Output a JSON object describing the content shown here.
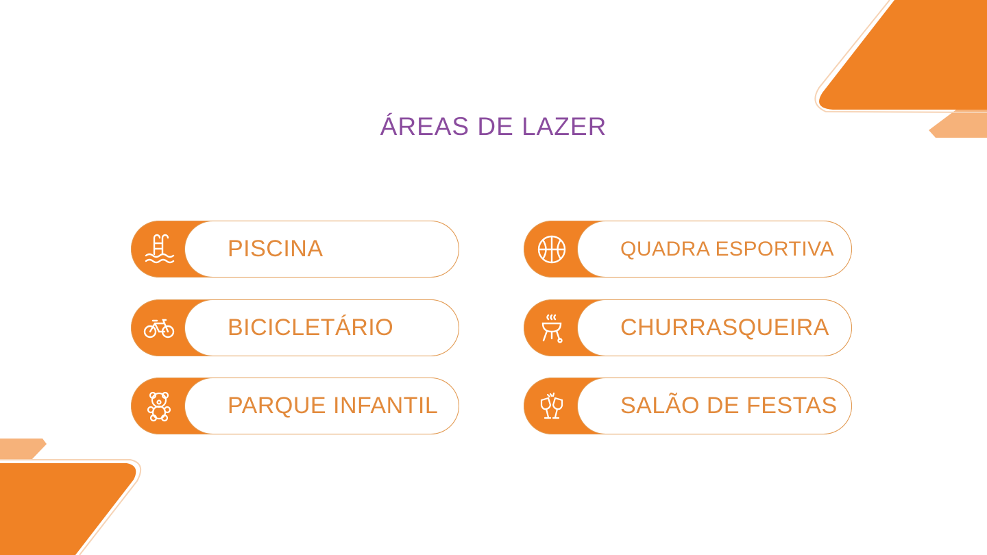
{
  "title": "ÁREAS DE LAZER",
  "colors": {
    "accent": "#F08225",
    "title": "#8A4C9E",
    "label": "#E28A3C"
  },
  "amenities": [
    {
      "label": "PISCINA",
      "icon": "pool-ladder-icon"
    },
    {
      "label": "QUADRA ESPORTIVA",
      "icon": "basketball-icon"
    },
    {
      "label": "BICICLETÁRIO",
      "icon": "bicycle-icon"
    },
    {
      "label": "CHURRASQUEIRA",
      "icon": "grill-icon"
    },
    {
      "label": "PARQUE INFANTIL",
      "icon": "teddy-bear-icon"
    },
    {
      "label": "SALÃO DE FESTAS",
      "icon": "champagne-glasses-icon"
    }
  ]
}
